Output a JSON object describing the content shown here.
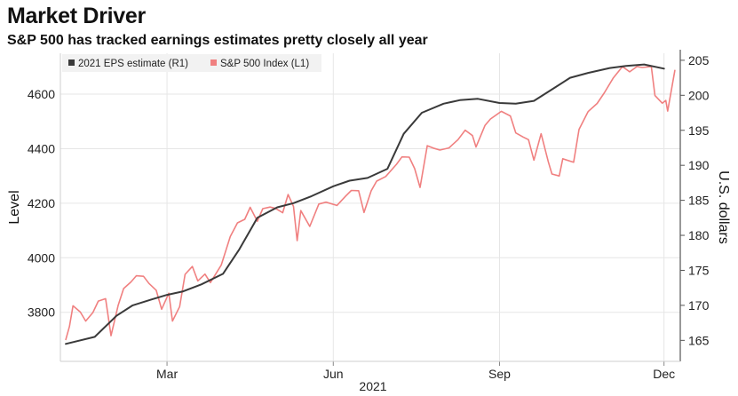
{
  "title": "Market Driver",
  "subtitle": "S&P 500 has tracked earnings estimates pretty closely all year",
  "chart_data": {
    "type": "line",
    "dual_axis": true,
    "year_label": "2021",
    "x_ticks": [
      {
        "label": "Mar",
        "date": "2021-03-01"
      },
      {
        "label": "Jun",
        "date": "2021-06-01"
      },
      {
        "label": "Sep",
        "date": "2021-09-01"
      },
      {
        "label": "Dec",
        "date": "2021-12-01"
      }
    ],
    "xlim": [
      "2021-01-01",
      "2021-12-10"
    ],
    "left_axis": {
      "label": "Level",
      "ticks": [
        3800,
        4000,
        4200,
        4400,
        4600
      ],
      "ylim": [
        3620,
        4750
      ]
    },
    "right_axis": {
      "label": "U.S. dollars",
      "ticks": [
        165,
        170,
        175,
        180,
        185,
        190,
        195,
        200,
        205
      ],
      "ylim": [
        162,
        206
      ]
    },
    "grid": true,
    "legend_position": "top-left",
    "series": [
      {
        "name": "2021 EPS estimate (R1)",
        "axis": "right",
        "color": "#3a3a3a",
        "points": [
          [
            "2021-01-04",
            164.5
          ],
          [
            "2021-01-20",
            165.5
          ],
          [
            "2021-02-01",
            168.5
          ],
          [
            "2021-02-10",
            170.0
          ],
          [
            "2021-02-20",
            170.8
          ],
          [
            "2021-03-01",
            171.5
          ],
          [
            "2021-03-10",
            172.0
          ],
          [
            "2021-03-20",
            173.0
          ],
          [
            "2021-04-01",
            174.5
          ],
          [
            "2021-04-10",
            178.0
          ],
          [
            "2021-04-20",
            182.5
          ],
          [
            "2021-05-01",
            184.0
          ],
          [
            "2021-05-10",
            184.6
          ],
          [
            "2021-05-20",
            185.6
          ],
          [
            "2021-06-01",
            187.0
          ],
          [
            "2021-06-10",
            187.8
          ],
          [
            "2021-06-20",
            188.2
          ],
          [
            "2021-07-01",
            189.5
          ],
          [
            "2021-07-10",
            194.5
          ],
          [
            "2021-07-20",
            197.5
          ],
          [
            "2021-08-01",
            198.8
          ],
          [
            "2021-08-10",
            199.3
          ],
          [
            "2021-08-20",
            199.5
          ],
          [
            "2021-09-01",
            198.9
          ],
          [
            "2021-09-10",
            198.8
          ],
          [
            "2021-09-20",
            199.2
          ],
          [
            "2021-10-01",
            201.0
          ],
          [
            "2021-10-10",
            202.5
          ],
          [
            "2021-10-20",
            203.2
          ],
          [
            "2021-11-01",
            203.9
          ],
          [
            "2021-11-10",
            204.2
          ],
          [
            "2021-11-20",
            204.4
          ],
          [
            "2021-12-01",
            203.8
          ]
        ]
      },
      {
        "name": "S&P 500 Index (L1)",
        "axis": "left",
        "color": "#f08080",
        "points": [
          [
            "2021-01-04",
            3700
          ],
          [
            "2021-01-06",
            3748
          ],
          [
            "2021-01-08",
            3824
          ],
          [
            "2021-01-12",
            3801
          ],
          [
            "2021-01-15",
            3768
          ],
          [
            "2021-01-19",
            3799
          ],
          [
            "2021-01-22",
            3841
          ],
          [
            "2021-01-26",
            3850
          ],
          [
            "2021-01-29",
            3714
          ],
          [
            "2021-02-02",
            3826
          ],
          [
            "2021-02-05",
            3887
          ],
          [
            "2021-02-09",
            3911
          ],
          [
            "2021-02-12",
            3934
          ],
          [
            "2021-02-16",
            3932
          ],
          [
            "2021-02-19",
            3906
          ],
          [
            "2021-02-23",
            3881
          ],
          [
            "2021-02-26",
            3811
          ],
          [
            "2021-03-02",
            3870
          ],
          [
            "2021-03-04",
            3768
          ],
          [
            "2021-03-08",
            3821
          ],
          [
            "2021-03-11",
            3939
          ],
          [
            "2021-03-15",
            3968
          ],
          [
            "2021-03-18",
            3915
          ],
          [
            "2021-03-22",
            3940
          ],
          [
            "2021-03-25",
            3909
          ],
          [
            "2021-03-31",
            3973
          ],
          [
            "2021-04-05",
            4078
          ],
          [
            "2021-04-09",
            4128
          ],
          [
            "2021-04-13",
            4141
          ],
          [
            "2021-04-16",
            4185
          ],
          [
            "2021-04-20",
            4134
          ],
          [
            "2021-04-23",
            4180
          ],
          [
            "2021-04-27",
            4186
          ],
          [
            "2021-04-30",
            4181
          ],
          [
            "2021-05-04",
            4165
          ],
          [
            "2021-05-07",
            4232
          ],
          [
            "2021-05-10",
            4188
          ],
          [
            "2021-05-12",
            4063
          ],
          [
            "2021-05-14",
            4173
          ],
          [
            "2021-05-19",
            4115
          ],
          [
            "2021-05-24",
            4197
          ],
          [
            "2021-05-28",
            4204
          ],
          [
            "2021-06-03",
            4192
          ],
          [
            "2021-06-08",
            4227
          ],
          [
            "2021-06-11",
            4247
          ],
          [
            "2021-06-15",
            4246
          ],
          [
            "2021-06-18",
            4166
          ],
          [
            "2021-06-22",
            4246
          ],
          [
            "2021-06-25",
            4281
          ],
          [
            "2021-06-30",
            4298
          ],
          [
            "2021-07-06",
            4343
          ],
          [
            "2021-07-09",
            4370
          ],
          [
            "2021-07-13",
            4369
          ],
          [
            "2021-07-16",
            4327
          ],
          [
            "2021-07-19",
            4258
          ],
          [
            "2021-07-23",
            4411
          ],
          [
            "2021-07-27",
            4401
          ],
          [
            "2021-07-30",
            4395
          ],
          [
            "2021-08-04",
            4403
          ],
          [
            "2021-08-09",
            4433
          ],
          [
            "2021-08-13",
            4468
          ],
          [
            "2021-08-17",
            4448
          ],
          [
            "2021-08-19",
            4406
          ],
          [
            "2021-08-24",
            4486
          ],
          [
            "2021-08-27",
            4509
          ],
          [
            "2021-09-02",
            4537
          ],
          [
            "2021-09-07",
            4520
          ],
          [
            "2021-09-10",
            4458
          ],
          [
            "2021-09-14",
            4443
          ],
          [
            "2021-09-17",
            4433
          ],
          [
            "2021-09-20",
            4358
          ],
          [
            "2021-09-24",
            4455
          ],
          [
            "2021-09-28",
            4352
          ],
          [
            "2021-09-30",
            4307
          ],
          [
            "2021-10-04",
            4300
          ],
          [
            "2021-10-06",
            4363
          ],
          [
            "2021-10-12",
            4350
          ],
          [
            "2021-10-15",
            4471
          ],
          [
            "2021-10-20",
            4536
          ],
          [
            "2021-10-25",
            4566
          ],
          [
            "2021-10-29",
            4605
          ],
          [
            "2021-11-03",
            4660
          ],
          [
            "2021-11-08",
            4701
          ],
          [
            "2021-11-12",
            4682
          ],
          [
            "2021-11-16",
            4701
          ],
          [
            "2021-11-19",
            4698
          ],
          [
            "2021-11-24",
            4701
          ],
          [
            "2021-11-26",
            4595
          ],
          [
            "2021-11-30",
            4567
          ],
          [
            "2021-12-02",
            4577
          ],
          [
            "2021-12-03",
            4538
          ],
          [
            "2021-12-07",
            4687
          ]
        ]
      }
    ]
  }
}
